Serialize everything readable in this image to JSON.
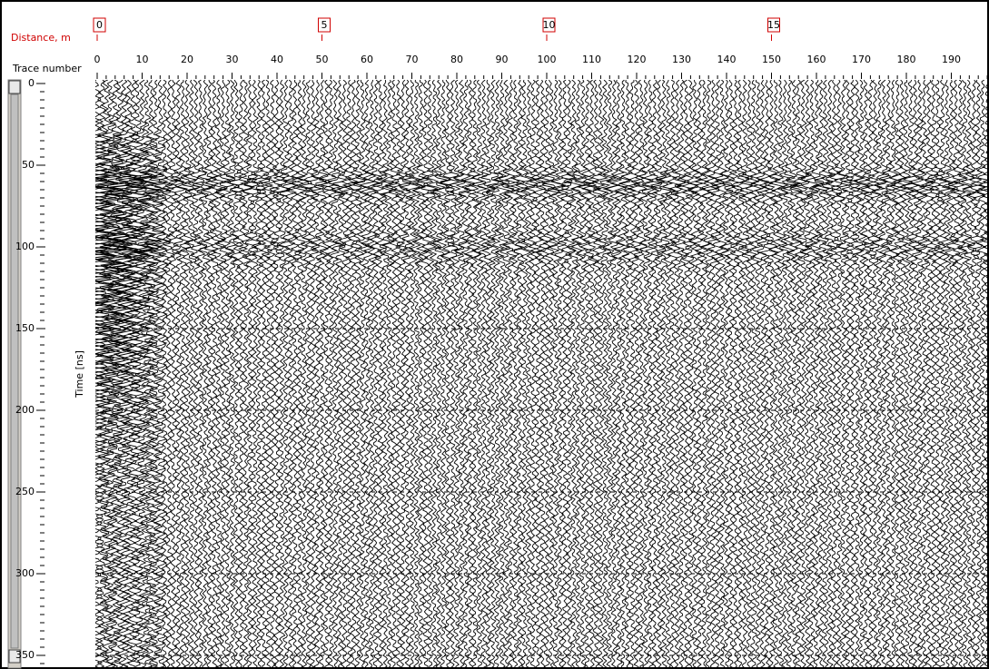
{
  "axes": {
    "distance": {
      "label": "Distance, m",
      "ticks": [
        0,
        5,
        10,
        15
      ]
    },
    "trace": {
      "label": "Trace number",
      "ticks": [
        0,
        10,
        20,
        30,
        40,
        50,
        60,
        70,
        80,
        90,
        100,
        110,
        120,
        130,
        140,
        150,
        160,
        170,
        180,
        190
      ]
    },
    "time": {
      "label": "Time [ns]",
      "ticks": [
        0,
        50,
        100,
        150,
        200,
        250,
        300,
        350
      ]
    }
  }
}
